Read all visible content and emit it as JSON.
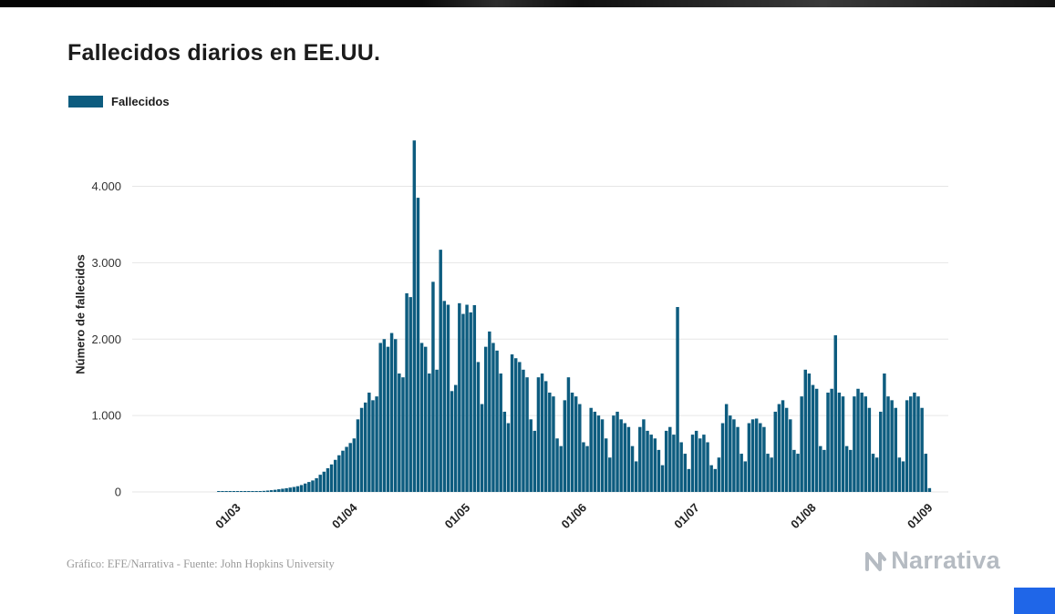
{
  "chart_data": {
    "type": "bar",
    "title": "Fallecidos diarios en EE.UU.",
    "ylabel": "Número de fallecidos",
    "xlabel": "",
    "grid": "horizontal",
    "legend_position": "top-left",
    "bar_color": "#0d5c7f",
    "series": [
      {
        "name": "Fallecidos",
        "color": "#0d5c7f",
        "values": [
          0,
          0,
          0,
          0,
          0,
          0,
          0,
          0,
          0,
          1,
          1,
          1,
          2,
          3,
          5,
          6,
          4,
          5,
          7,
          8,
          10,
          14,
          18,
          23,
          28,
          35,
          42,
          49,
          57,
          65,
          75,
          90,
          110,
          130,
          150,
          180,
          225,
          265,
          310,
          360,
          420,
          480,
          540,
          590,
          640,
          700,
          950,
          1100,
          1170,
          1300,
          1200,
          1250,
          1950,
          2000,
          1900,
          2080,
          2000,
          1550,
          1500,
          2600,
          2550,
          4600,
          3850,
          1950,
          1900,
          1550,
          2750,
          1600,
          3170,
          2500,
          2450,
          1320,
          1400,
          2470,
          2330,
          2450,
          2350,
          2445,
          1700,
          1150,
          1900,
          2100,
          1950,
          1850,
          1550,
          1050,
          900,
          1800,
          1750,
          1700,
          1600,
          1500,
          950,
          800,
          1500,
          1550,
          1450,
          1300,
          1250,
          700,
          600,
          1200,
          1500,
          1300,
          1250,
          1150,
          650,
          600,
          1100,
          1050,
          1000,
          950,
          700,
          450,
          1000,
          1050,
          950,
          900,
          850,
          600,
          400,
          850,
          950,
          800,
          750,
          700,
          550,
          350,
          800,
          850,
          750,
          2420,
          650,
          500,
          300,
          750,
          800,
          700,
          750,
          650,
          350,
          300,
          450,
          900,
          1150,
          1000,
          950,
          850,
          500,
          400,
          900,
          950,
          960,
          900,
          850,
          500,
          450,
          1050,
          1150,
          1200,
          1100,
          950,
          550,
          500,
          1250,
          1600,
          1550,
          1400,
          1350,
          600,
          550,
          1300,
          1350,
          2050,
          1300,
          1250,
          600,
          550,
          1250,
          1350,
          1300,
          1250,
          1100,
          500,
          450,
          1050,
          1550,
          1250,
          1200,
          1100,
          450,
          400,
          1200,
          1250,
          1300,
          1250,
          1100,
          500,
          50
        ]
      }
    ],
    "x_start": "2020-02-15",
    "x_domain_days": 217,
    "data_start_day": 14,
    "xticks": [
      {
        "label": "01/03",
        "day": 29
      },
      {
        "label": "01/04",
        "day": 60
      },
      {
        "label": "01/05",
        "day": 90
      },
      {
        "label": "01/06",
        "day": 121
      },
      {
        "label": "01/07",
        "day": 151
      },
      {
        "label": "01/08",
        "day": 182
      },
      {
        "label": "01/09",
        "day": 213
      }
    ],
    "yticks": [
      {
        "label": "0",
        "value": 0
      },
      {
        "label": "1.000",
        "value": 1000
      },
      {
        "label": "2.000",
        "value": 2000
      },
      {
        "label": "3.000",
        "value": 3000
      },
      {
        "label": "4.000",
        "value": 4000
      }
    ],
    "ylim": [
      0,
      4650
    ]
  },
  "footer": {
    "credit": "Gráfico: EFE/Narrativa - Fuente: John Hopkins University",
    "logo_text": "Narrativa"
  }
}
